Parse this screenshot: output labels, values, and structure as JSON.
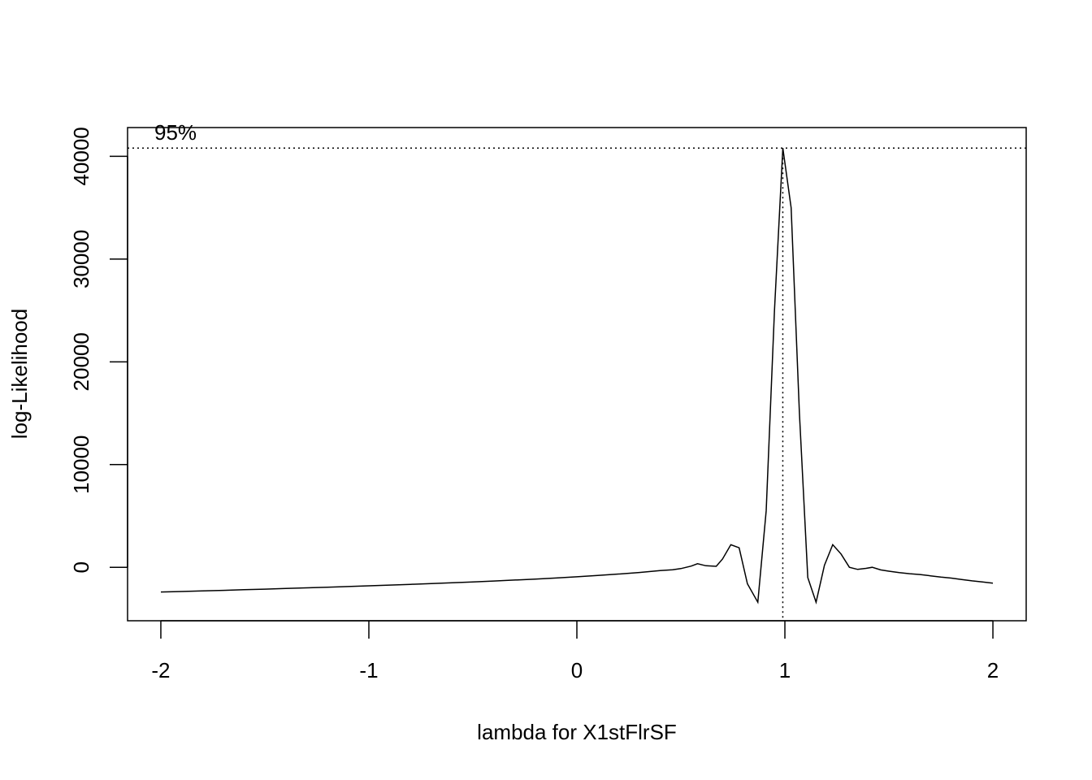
{
  "chart_data": {
    "type": "line",
    "title": "",
    "xlabel": "lambda for X1stFlrSF",
    "ylabel": "log-Likelihood",
    "xlim": [
      -2.16,
      2.16
    ],
    "ylim": [
      -5200,
      42800
    ],
    "xticks": [
      {
        "value": -2,
        "label": "-2"
      },
      {
        "value": -1,
        "label": "-1"
      },
      {
        "value": 0,
        "label": "0"
      },
      {
        "value": 1,
        "label": "1"
      },
      {
        "value": 2,
        "label": "2"
      }
    ],
    "yticks": [
      {
        "value": 0,
        "label": "0"
      },
      {
        "value": 10000,
        "label": "10000"
      },
      {
        "value": 20000,
        "label": "20000"
      },
      {
        "value": 30000,
        "label": "30000"
      },
      {
        "value": 40000,
        "label": "40000"
      }
    ],
    "grid": false,
    "series": [
      {
        "x": [
          -2.0,
          -1.9,
          -1.8,
          -1.7,
          -1.6,
          -1.5,
          -1.4,
          -1.3,
          -1.2,
          -1.1,
          -1.0,
          -0.9,
          -0.8,
          -0.7,
          -0.6,
          -0.5,
          -0.4,
          -0.3,
          -0.2,
          -0.1,
          0.0,
          0.1,
          0.2,
          0.3,
          0.4,
          0.46,
          0.5,
          0.55,
          0.58,
          0.62,
          0.67,
          0.7,
          0.74,
          0.78,
          0.82,
          0.87,
          0.91,
          0.95,
          0.99,
          1.03,
          1.07,
          1.11,
          1.15,
          1.19,
          1.23,
          1.27,
          1.31,
          1.35,
          1.39,
          1.42,
          1.46,
          1.5,
          1.55,
          1.6,
          1.65,
          1.7,
          1.75,
          1.8,
          1.85,
          1.9,
          1.95,
          2.0
        ],
        "y": [
          -2400,
          -2350,
          -2300,
          -2240,
          -2180,
          -2120,
          -2060,
          -2000,
          -1940,
          -1870,
          -1800,
          -1730,
          -1660,
          -1580,
          -1500,
          -1420,
          -1330,
          -1240,
          -1150,
          -1040,
          -920,
          -790,
          -650,
          -500,
          -320,
          -230,
          -120,
          120,
          350,
          150,
          100,
          800,
          2200,
          1900,
          -1600,
          -3400,
          5500,
          25000,
          40800,
          35000,
          15000,
          -1000,
          -3400,
          200,
          2200,
          1300,
          0,
          -200,
          -100,
          0,
          -250,
          -380,
          -520,
          -620,
          -700,
          -830,
          -950,
          -1050,
          -1180,
          -1320,
          -1420,
          -1550
        ]
      }
    ],
    "annotations": [
      {
        "type": "hline",
        "y": 40800,
        "style": "dotted",
        "label": "95%"
      },
      {
        "type": "vline",
        "x": 0.99,
        "style": "dotted"
      }
    ]
  }
}
